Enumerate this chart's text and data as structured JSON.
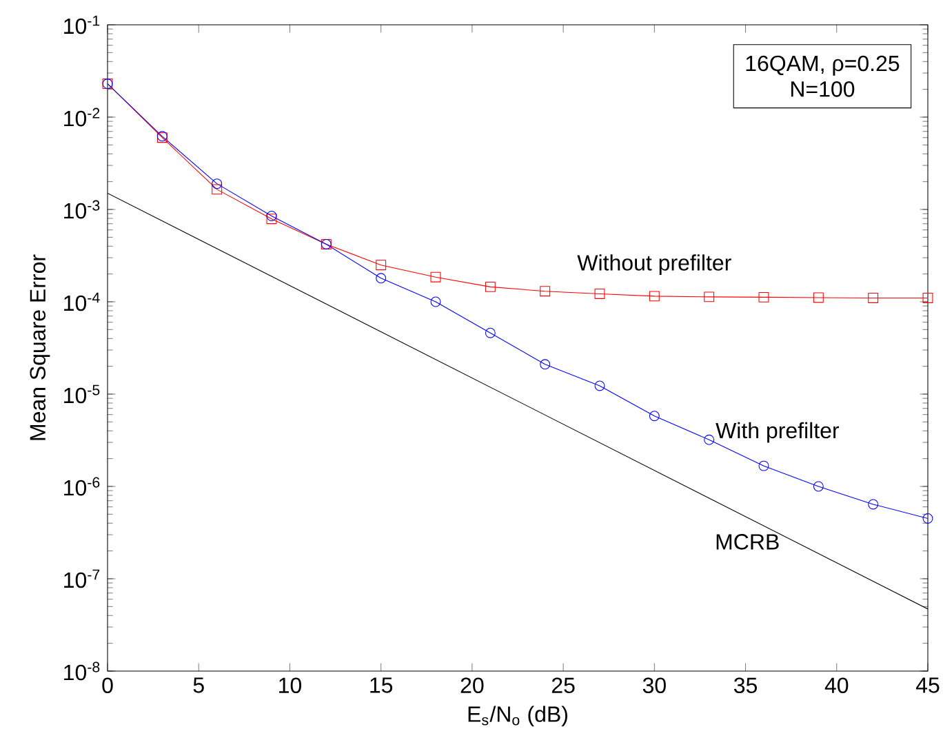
{
  "chart_data": {
    "type": "line",
    "xlabel": "E$_{s}$/N$_{o}$ (dB)",
    "ylabel": "Mean Square Error",
    "x": [
      0,
      3,
      6,
      9,
      12,
      15,
      18,
      21,
      24,
      27,
      30,
      33,
      36,
      39,
      42,
      45
    ],
    "series": [
      {
        "name": "Without prefilter",
        "color": "#ff0000",
        "marker": "square",
        "values": [
          0.023,
          0.006,
          0.00165,
          0.00079,
          0.00042,
          0.00025,
          0.000185,
          0.000145,
          0.00013,
          0.000122,
          0.000115,
          0.000113,
          0.000112,
          0.000111,
          0.00011,
          0.00011
        ]
      },
      {
        "name": "With prefilter",
        "color": "#0000ff",
        "marker": "circle",
        "values": [
          0.023,
          0.0062,
          0.0019,
          0.00085,
          0.00042,
          0.00018,
          0.0001,
          4.6e-05,
          2.1e-05,
          1.23e-05,
          5.8e-06,
          3.2e-06,
          1.67e-06,
          1e-06,
          6.4e-07,
          4.5e-07
        ]
      },
      {
        "name": "MCRB",
        "color": "#000000",
        "marker": "none",
        "x": [
          0,
          45
        ],
        "values": [
          0.0015,
          4.7e-08
        ]
      }
    ],
    "annotations": [
      "16QAM, ρ=0.25",
      "N=100"
    ],
    "log": "y",
    "grid": false,
    "legend": false,
    "line_style": "solid",
    "xlim": [
      0,
      45
    ],
    "xticks": [
      0,
      5,
      10,
      15,
      20,
      25,
      30,
      35,
      40,
      45
    ],
    "ylim": [
      1e-08,
      0.1
    ],
    "yticks": [
      {
        "value": 1e-08,
        "label": "10$^{-8}$"
      },
      {
        "value": 1e-07,
        "label": "10$^{-7}$"
      },
      {
        "value": 1e-06,
        "label": "10$^{-6}$"
      },
      {
        "value": 1e-05,
        "label": "10$^{-5}$"
      },
      {
        "value": 0.0001,
        "label": "10$^{-4}$"
      },
      {
        "value": 0.001,
        "label": "10$^{-3}$"
      },
      {
        "value": 0.01,
        "label": "10$^{-2}$"
      },
      {
        "value": 0.1,
        "label": "10$^{-1}$"
      }
    ]
  }
}
